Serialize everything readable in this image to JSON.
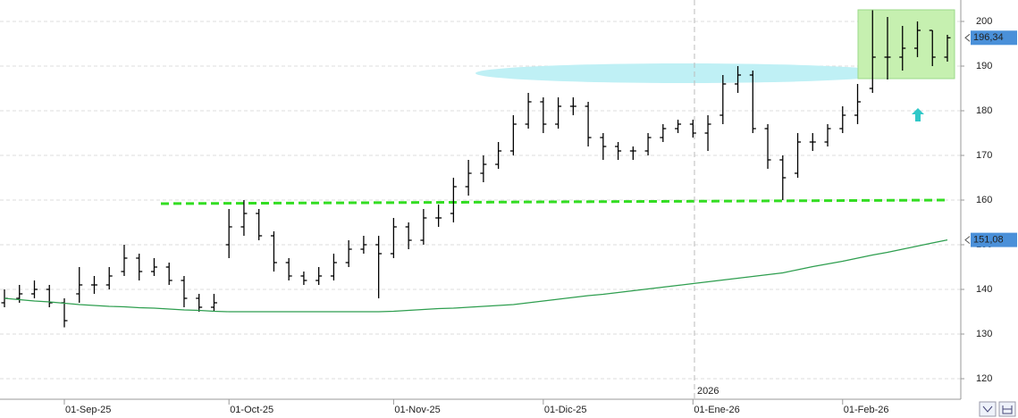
{
  "chart_data": {
    "type": "ohlc",
    "categories": [
      null,
      null,
      null,
      null,
      "01-Sep-25",
      null,
      null,
      null,
      null,
      null,
      null,
      null,
      null,
      null,
      null,
      "01-Oct-25",
      null,
      null,
      null,
      null,
      null,
      null,
      null,
      null,
      null,
      null,
      "01-Nov-25",
      null,
      null,
      null,
      null,
      null,
      null,
      null,
      null,
      null,
      "01-Dic-25",
      null,
      null,
      null,
      null,
      null,
      null,
      null,
      null,
      null,
      "01-Ene-26",
      null,
      null,
      null,
      null,
      null,
      null,
      null,
      null,
      null,
      "01-Feb-26",
      null,
      null,
      null,
      null,
      null,
      null,
      null
    ],
    "series": [
      {
        "type": "ohlc",
        "color": "#000000",
        "open": [
          137,
          138,
          139,
          140,
          137,
          139,
          141,
          141,
          144,
          147,
          144,
          145,
          142,
          138,
          136,
          150,
          154,
          157,
          152,
          146,
          143,
          142,
          143,
          146,
          149,
          150,
          148,
          154,
          151,
          156,
          157,
          163,
          166,
          168,
          171,
          177,
          182,
          177,
          181,
          181,
          174,
          172,
          171,
          171,
          174,
          176,
          177,
          175,
          179,
          186,
          188,
          176,
          169,
          166,
          173,
          173,
          176,
          179,
          185,
          192,
          192,
          194,
          198,
          192
        ],
        "high": [
          140,
          141,
          142,
          141,
          138,
          145,
          143,
          145,
          150,
          148,
          147,
          146,
          143,
          139,
          139,
          158,
          160,
          158,
          153,
          147,
          144,
          145,
          148,
          151,
          152,
          152,
          156,
          155,
          158,
          159,
          165,
          169,
          170,
          173,
          179,
          184,
          183,
          183,
          183,
          182,
          175,
          173,
          172,
          175,
          177,
          178,
          178,
          179,
          188,
          190,
          189,
          177,
          170,
          175,
          175,
          177,
          181,
          186,
          202.5,
          201,
          199,
          200,
          198,
          197
        ],
        "low": [
          136,
          137,
          138,
          136,
          131.5,
          137,
          139,
          140,
          143,
          142,
          143,
          141,
          136,
          135,
          135,
          147,
          152,
          151,
          144,
          142,
          141,
          141,
          142,
          145,
          148,
          138,
          147,
          149,
          150,
          154,
          155,
          161,
          164,
          167,
          170,
          176,
          175,
          176,
          179,
          172,
          169,
          169,
          169,
          170,
          173,
          175,
          174,
          171,
          177,
          184,
          175,
          167,
          160,
          165,
          171,
          172,
          175,
          177,
          184,
          187,
          189,
          192,
          190,
          191
        ],
        "close": [
          138,
          139,
          140,
          137,
          133,
          141,
          141,
          143,
          147,
          144,
          145,
          142,
          138,
          136,
          137,
          154,
          157,
          152,
          146,
          143,
          142,
          143,
          146,
          149,
          150,
          148,
          154,
          151,
          156,
          156,
          163,
          166,
          168,
          171,
          177,
          182,
          177,
          181,
          181,
          174,
          172,
          171,
          171,
          174,
          176,
          177,
          175,
          177,
          186,
          188,
          176,
          169,
          165,
          173,
          173,
          176,
          179,
          182,
          192,
          192,
          194,
          198,
          192,
          196.34
        ]
      },
      {
        "type": "line",
        "color": "#2e9e4f",
        "values": [
          138,
          137.7,
          137.4,
          137.2,
          136.9,
          136.6,
          136.4,
          136.2,
          136.1,
          135.9,
          135.8,
          135.6,
          135.4,
          135.3,
          135.1,
          135,
          135,
          135,
          135,
          135,
          135,
          135,
          135,
          135,
          135,
          135,
          135.1,
          135.3,
          135.5,
          135.7,
          135.8,
          136,
          136.2,
          136.4,
          136.6,
          137,
          137.4,
          137.8,
          138.2,
          138.6,
          138.9,
          139.3,
          139.7,
          140.1,
          140.5,
          140.9,
          141.3,
          141.7,
          142.1,
          142.5,
          142.9,
          143.3,
          143.7,
          144.4,
          145.1,
          145.7,
          146.3,
          147,
          147.7,
          148.3,
          149,
          149.7,
          150.4,
          151.08
        ]
      }
    ],
    "markers": [
      {
        "value": 196.34,
        "label": "196,34"
      },
      {
        "value": 151.08,
        "label": "151,08"
      }
    ],
    "year_marker": "2026",
    "ylim": [
      115.4,
      204.8
    ],
    "yticks": [
      120,
      130,
      140,
      150,
      160,
      170,
      180,
      190,
      200
    ],
    "grid": true
  }
}
